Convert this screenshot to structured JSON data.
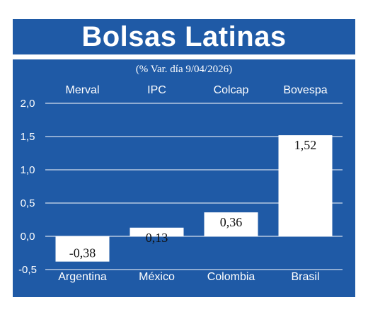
{
  "chart_data": {
    "type": "bar",
    "title": "Bolsas Latinas",
    "subtitle": "(% Var. día 9/04/2026)",
    "indices": [
      "Merval",
      "IPC",
      "Colcap",
      "Bovespa"
    ],
    "categories": [
      "Argentina",
      "México",
      "Colombia",
      "Brasil"
    ],
    "values": [
      -0.38,
      0.13,
      0.36,
      1.52
    ],
    "value_labels": [
      "-0,38",
      "0,13",
      "0,36",
      "1,52"
    ],
    "ylim": [
      -0.5,
      2.0
    ],
    "yticks": [
      -0.5,
      0.0,
      0.5,
      1.0,
      1.5,
      2.0
    ],
    "ytick_labels": [
      "-0,5",
      "0,0",
      "0,5",
      "1,0",
      "1,5",
      "2,0"
    ],
    "grid": true,
    "colors": {
      "background": "#1f5aa6",
      "bar": "#ffffff",
      "text": "#ffffff",
      "label": "#111111",
      "grid": "#ffffff"
    }
  }
}
